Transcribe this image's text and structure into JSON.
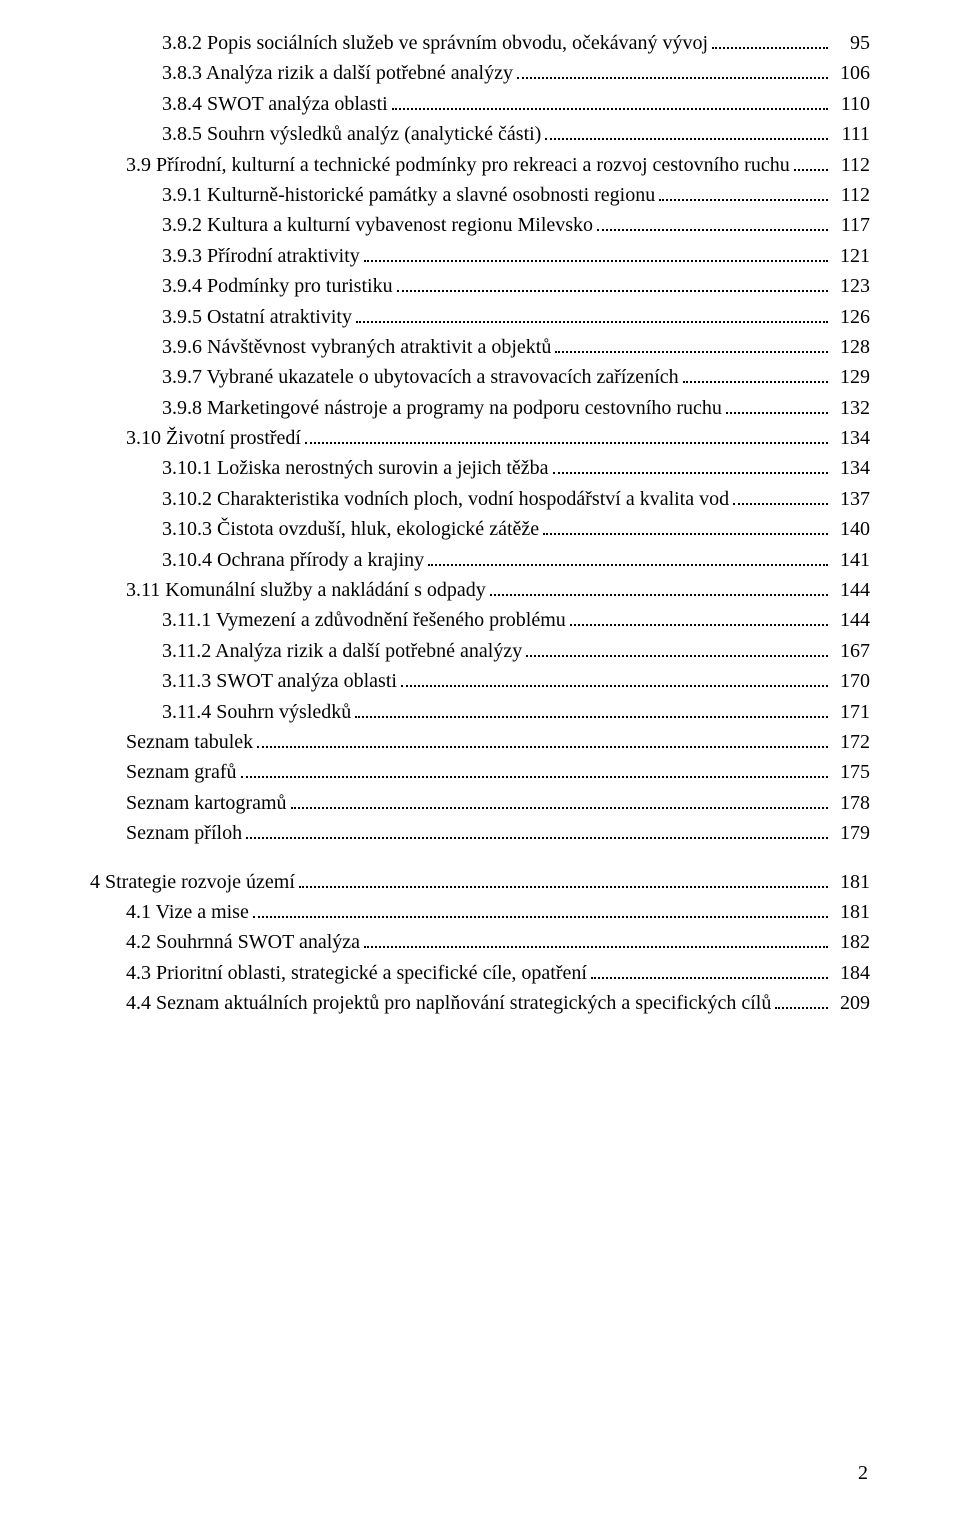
{
  "page_number": "2",
  "groups": [
    {
      "entries": [
        {
          "indent": 2,
          "title": "3.8.2 Popis sociálních služeb ve správním obvodu, očekávaný vývoj",
          "page": "95"
        },
        {
          "indent": 2,
          "title": "3.8.3 Analýza rizik a další potřebné analýzy",
          "page": "106"
        },
        {
          "indent": 2,
          "title": "3.8.4 SWOT analýza oblasti",
          "page": "110"
        },
        {
          "indent": 2,
          "title": "3.8.5 Souhrn výsledků analýz (analytické části)",
          "page": "111"
        },
        {
          "indent": 1,
          "title": "3.9 Přírodní, kulturní a technické podmínky pro rekreaci a rozvoj cestovního ruchu",
          "page": "112"
        },
        {
          "indent": 2,
          "title": "3.9.1 Kulturně-historické památky a slavné osobnosti regionu",
          "page": "112"
        },
        {
          "indent": 2,
          "title": "3.9.2 Kultura a kulturní vybavenost regionu Milevsko",
          "page": "117"
        },
        {
          "indent": 2,
          "title": "3.9.3 Přírodní atraktivity",
          "page": "121"
        },
        {
          "indent": 2,
          "title": "3.9.4 Podmínky pro turistiku",
          "page": "123"
        },
        {
          "indent": 2,
          "title": "3.9.5 Ostatní atraktivity",
          "page": "126"
        },
        {
          "indent": 2,
          "title": "3.9.6 Návštěvnost vybraných atraktivit a objektů",
          "page": "128"
        },
        {
          "indent": 2,
          "title": "3.9.7 Vybrané ukazatele o ubytovacích a stravovacích zařízeních",
          "page": "129"
        },
        {
          "indent": 2,
          "title": "3.9.8 Marketingové nástroje a programy na podporu cestovního ruchu",
          "page": "132"
        },
        {
          "indent": 1,
          "title": "3.10 Životní prostředí",
          "page": "134"
        },
        {
          "indent": 2,
          "title": "3.10.1 Ložiska nerostných surovin a jejich těžba",
          "page": "134"
        },
        {
          "indent": 2,
          "title": "3.10.2 Charakteristika vodních ploch, vodní hospodářství a kvalita vod",
          "page": "137"
        },
        {
          "indent": 2,
          "title": "3.10.3 Čistota ovzduší, hluk, ekologické zátěže",
          "page": "140"
        },
        {
          "indent": 2,
          "title": "3.10.4 Ochrana přírody a krajiny",
          "page": "141"
        },
        {
          "indent": 1,
          "title": "3.11 Komunální služby a nakládání s odpady",
          "page": "144"
        },
        {
          "indent": 2,
          "title": "3.11.1 Vymezení a zdůvodnění řešeného problému",
          "page": "144"
        },
        {
          "indent": 2,
          "title": "3.11.2 Analýza rizik a další potřebné analýzy",
          "page": "167"
        },
        {
          "indent": 2,
          "title": "3.11.3 SWOT analýza oblasti",
          "page": "170"
        },
        {
          "indent": 2,
          "title": "3.11.4 Souhrn výsledků",
          "page": "171"
        },
        {
          "indent": 1,
          "title": "Seznam tabulek",
          "page": "172"
        },
        {
          "indent": 1,
          "title": "Seznam grafů",
          "page": "175"
        },
        {
          "indent": 1,
          "title": "Seznam kartogramů",
          "page": "178"
        },
        {
          "indent": 1,
          "title": "Seznam příloh",
          "page": "179"
        }
      ]
    },
    {
      "entries": [
        {
          "indent": 0,
          "title": "4 Strategie rozvoje území",
          "page": "181"
        },
        {
          "indent": 1,
          "title": "4.1 Vize a mise",
          "page": "181"
        },
        {
          "indent": 1,
          "title": "4.2 Souhrnná SWOT analýza",
          "page": "182"
        },
        {
          "indent": 1,
          "title": "4.3 Prioritní oblasti, strategické a specifické cíle, opatření",
          "page": "184"
        },
        {
          "indent": 1,
          "title": "4.4 Seznam aktuálních projektů pro naplňování strategických a specifických cílů",
          "page": "209"
        }
      ]
    }
  ]
}
